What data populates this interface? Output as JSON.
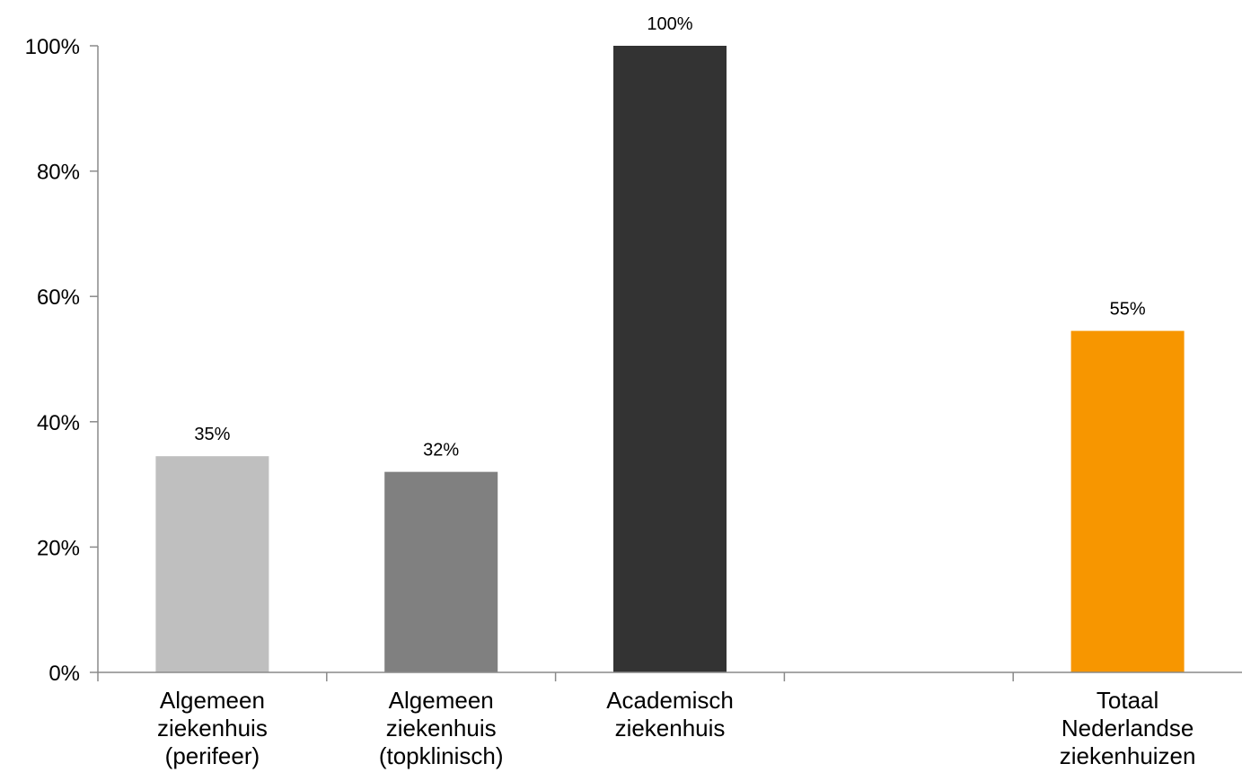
{
  "chart_data": {
    "type": "bar",
    "categories": [
      [
        "Algemeen",
        "ziekenhuis",
        "(perifeer)"
      ],
      [
        "Algemeen",
        "ziekenhuis",
        "(topklinisch)"
      ],
      [
        "Academisch",
        "ziekenhuis"
      ],
      [],
      [
        "Totaal",
        "Nederlandse",
        "ziekenhuizen"
      ]
    ],
    "values": [
      34.5,
      32,
      100,
      null,
      54.5
    ],
    "data_labels": [
      "35%",
      "32%",
      "100%",
      "",
      "55%"
    ],
    "colors": [
      "#bfbfbf",
      "#808080",
      "#333333",
      "",
      "#f79600"
    ],
    "ylim": [
      0,
      100
    ],
    "yticks": [
      0,
      20,
      40,
      60,
      80,
      100
    ],
    "ytick_labels": [
      "0%",
      "20%",
      "40%",
      "60%",
      "80%",
      "100%"
    ],
    "title": "",
    "xlabel": "",
    "ylabel": "",
    "grid": false,
    "legend": "none"
  }
}
